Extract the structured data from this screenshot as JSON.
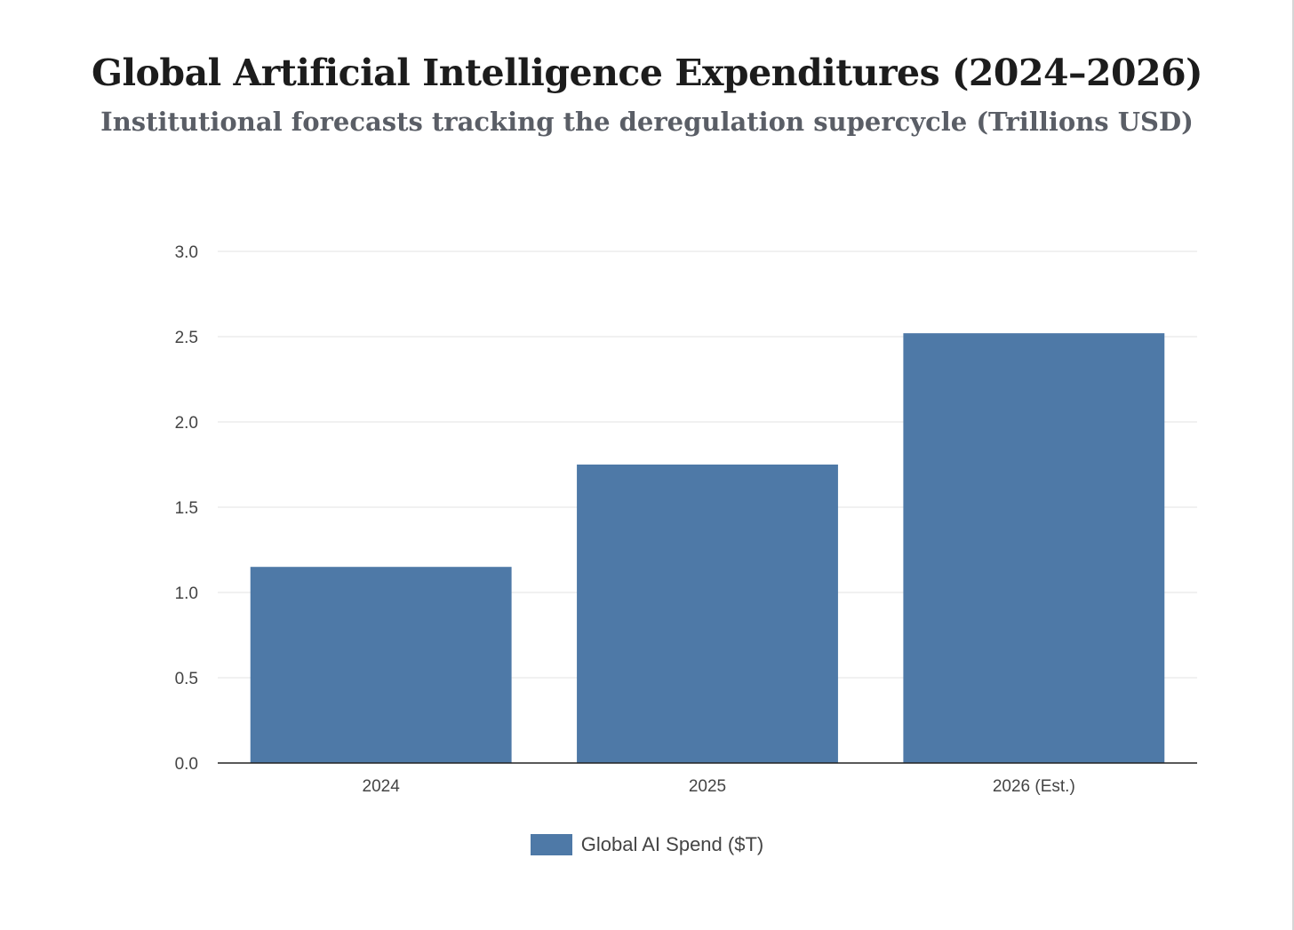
{
  "chart_data": {
    "type": "bar",
    "title": "Global Artificial Intelligence Expenditures (2024–2026)",
    "subtitle": "Institutional forecasts tracking the deregulation supercycle (Trillions USD)",
    "categories": [
      "2024",
      "2025",
      "2026 (Est.)"
    ],
    "series": [
      {
        "name": "Global AI Spend ($T)",
        "values": [
          1.15,
          1.75,
          2.52
        ],
        "color": "#4e79a7"
      }
    ],
    "ylim": [
      0,
      3.0
    ],
    "yticks": [
      "0.0",
      "0.5",
      "1.0",
      "1.5",
      "2.0",
      "2.5",
      "3.0"
    ],
    "xlabel": "",
    "ylabel": "",
    "grid": true,
    "legend": "bottom-center"
  }
}
